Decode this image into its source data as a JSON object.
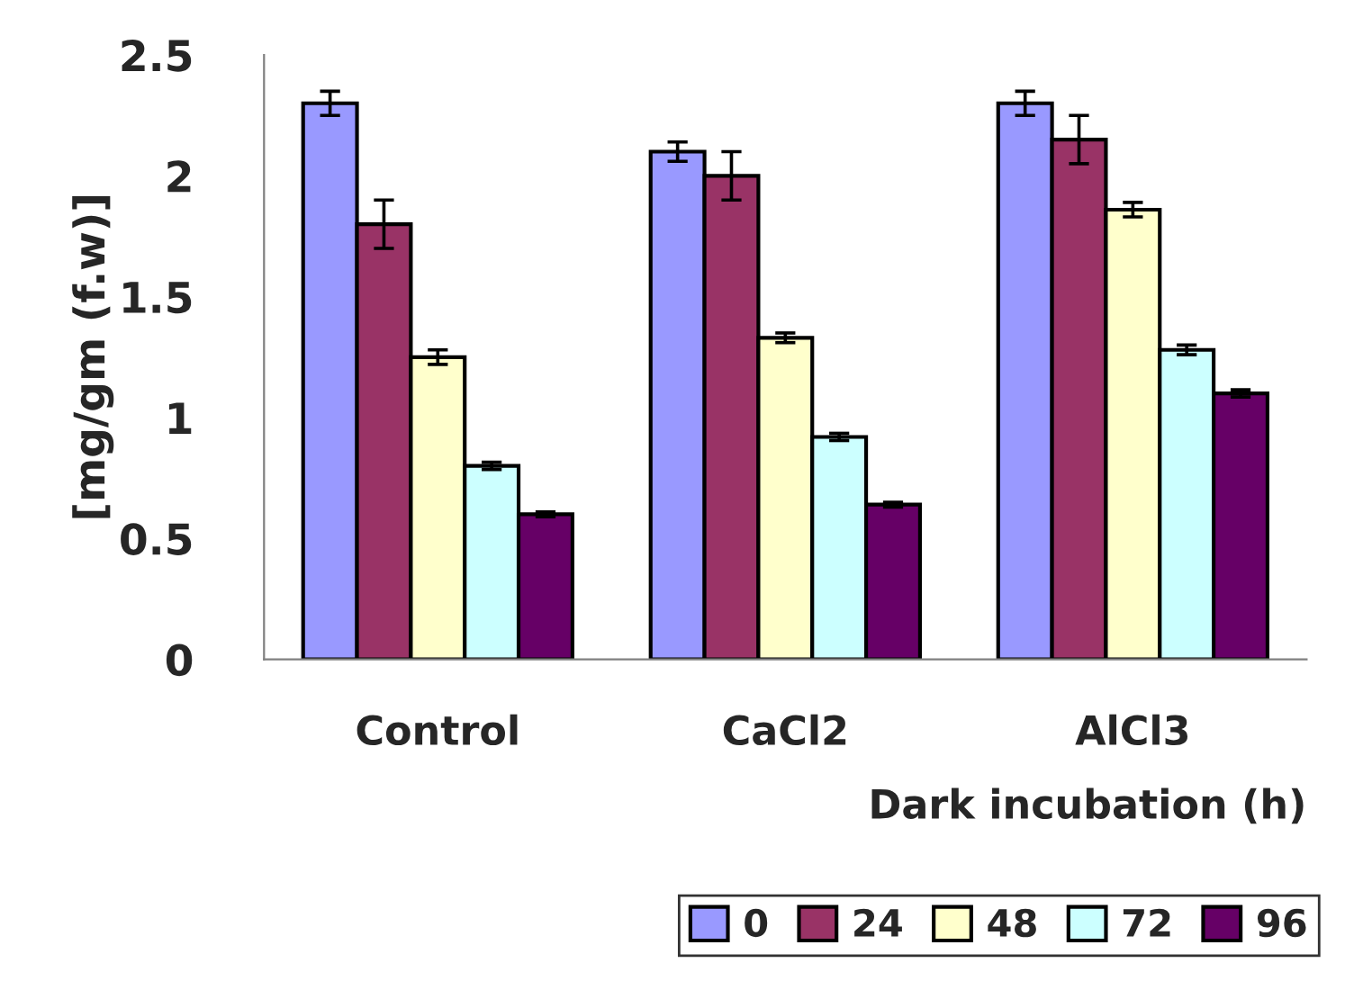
{
  "chart_data": {
    "type": "bar",
    "xlabel": "Dark incubation (h)",
    "ylabel": "[mg/gm (f.w)]",
    "categories": [
      "Control",
      "CaCl2",
      "AlCl3"
    ],
    "series": [
      {
        "name": "0",
        "color": "#9999ff",
        "values": [
          2.3,
          2.1,
          2.3
        ],
        "errors": [
          0.05,
          0.04,
          0.05
        ]
      },
      {
        "name": "24",
        "color": "#993366",
        "values": [
          1.8,
          2.0,
          2.15
        ],
        "errors": [
          0.1,
          0.1,
          0.1
        ]
      },
      {
        "name": "48",
        "color": "#ffffcc",
        "values": [
          1.25,
          1.33,
          1.86
        ],
        "errors": [
          0.03,
          0.02,
          0.03
        ]
      },
      {
        "name": "72",
        "color": "#ccffff",
        "values": [
          0.8,
          0.92,
          1.28
        ],
        "errors": [
          0.015,
          0.015,
          0.02
        ]
      },
      {
        "name": "96",
        "color": "#660066",
        "values": [
          0.6,
          0.64,
          1.1
        ],
        "errors": [
          0.01,
          0.01,
          0.015
        ]
      }
    ],
    "ylim": [
      0,
      2.5
    ],
    "yticks": [
      0,
      0.5,
      1,
      1.5,
      2,
      2.5
    ],
    "grid": false,
    "legend": "bottom right"
  }
}
